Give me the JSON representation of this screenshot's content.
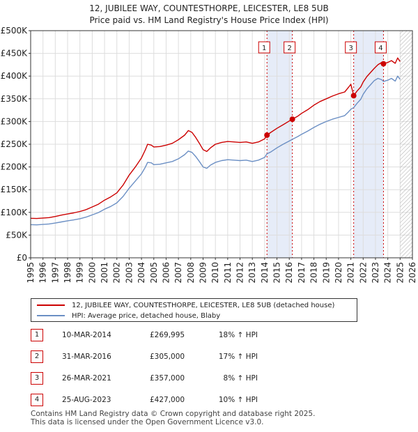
{
  "title_line1": "12, JUBILEE WAY, COUNTESTHORPE, LEICESTER, LE8 5UB",
  "title_line2": "Price paid vs. HM Land Registry's House Price Index (HPI)",
  "colors": {
    "price_line": "#cc0000",
    "hpi_line": "#6b8fc4",
    "marker_fill": "#cc0000",
    "shade": "#e6ecf8",
    "grid": "#dddddd",
    "box_border": "#cc0000",
    "hatch": "#aaaaaa"
  },
  "chart_data": {
    "type": "line",
    "xlim": [
      1995,
      2026
    ],
    "ylim": [
      0,
      500000
    ],
    "x_ticks": [
      "1995",
      "1996",
      "1997",
      "1998",
      "1999",
      "2000",
      "2001",
      "2002",
      "2003",
      "2004",
      "2005",
      "2006",
      "2007",
      "2008",
      "2009",
      "2010",
      "2011",
      "2012",
      "2013",
      "2014",
      "2015",
      "2016",
      "2017",
      "2018",
      "2019",
      "2020",
      "2021",
      "2022",
      "2023",
      "2024",
      "2025",
      "2026"
    ],
    "y_ticks": [
      {
        "value": 0,
        "label": "£0"
      },
      {
        "value": 50000,
        "label": "£50K"
      },
      {
        "value": 100000,
        "label": "£100K"
      },
      {
        "value": 150000,
        "label": "£150K"
      },
      {
        "value": 200000,
        "label": "£200K"
      },
      {
        "value": 250000,
        "label": "£250K"
      },
      {
        "value": 300000,
        "label": "£300K"
      },
      {
        "value": 350000,
        "label": "£350K"
      },
      {
        "value": 400000,
        "label": "£400K"
      },
      {
        "value": 450000,
        "label": "£450K"
      },
      {
        "value": 500000,
        "label": "£500K"
      }
    ],
    "hatch_from": 2025,
    "shaded_periods": [
      [
        2014.19,
        2016.25
      ],
      [
        2021.23,
        2023.65
      ]
    ],
    "series": [
      {
        "name": "12, JUBILEE WAY, COUNTESTHORPE, LEICESTER, LE8 5UB (detached house)",
        "color": "#cc0000",
        "points": [
          [
            1995.0,
            87000
          ],
          [
            1995.5,
            86500
          ],
          [
            1996.0,
            87500
          ],
          [
            1996.5,
            88500
          ],
          [
            1997.0,
            91000
          ],
          [
            1997.5,
            94000
          ],
          [
            1998.0,
            96500
          ],
          [
            1998.5,
            99000
          ],
          [
            1999.0,
            102000
          ],
          [
            1999.5,
            106000
          ],
          [
            2000.0,
            112000
          ],
          [
            2000.5,
            118000
          ],
          [
            2001.0,
            127000
          ],
          [
            2001.5,
            134000
          ],
          [
            2002.0,
            143000
          ],
          [
            2002.5,
            160000
          ],
          [
            2003.0,
            182000
          ],
          [
            2003.5,
            200000
          ],
          [
            2004.0,
            220000
          ],
          [
            2004.3,
            237000
          ],
          [
            2004.5,
            250000
          ],
          [
            2004.8,
            248000
          ],
          [
            2005.0,
            244000
          ],
          [
            2005.5,
            245000
          ],
          [
            2006.0,
            248000
          ],
          [
            2006.5,
            252000
          ],
          [
            2007.0,
            260000
          ],
          [
            2007.5,
            270000
          ],
          [
            2007.8,
            280000
          ],
          [
            2008.1,
            276000
          ],
          [
            2008.4,
            265000
          ],
          [
            2008.7,
            252000
          ],
          [
            2009.0,
            238000
          ],
          [
            2009.3,
            234000
          ],
          [
            2009.6,
            242000
          ],
          [
            2010.0,
            250000
          ],
          [
            2010.5,
            254000
          ],
          [
            2011.0,
            256000
          ],
          [
            2011.5,
            255000
          ],
          [
            2012.0,
            254000
          ],
          [
            2012.5,
            255000
          ],
          [
            2013.0,
            252000
          ],
          [
            2013.5,
            255000
          ],
          [
            2014.0,
            262000
          ],
          [
            2014.19,
            269995
          ],
          [
            2014.5,
            276000
          ],
          [
            2015.0,
            285000
          ],
          [
            2015.5,
            293000
          ],
          [
            2016.0,
            301000
          ],
          [
            2016.25,
            305000
          ],
          [
            2016.7,
            312000
          ],
          [
            2017.0,
            318000
          ],
          [
            2017.5,
            326000
          ],
          [
            2018.0,
            336000
          ],
          [
            2018.5,
            344000
          ],
          [
            2019.0,
            350000
          ],
          [
            2019.5,
            356000
          ],
          [
            2020.0,
            361000
          ],
          [
            2020.5,
            365000
          ],
          [
            2020.8,
            375000
          ],
          [
            2021.0,
            382000
          ],
          [
            2021.23,
            357000
          ],
          [
            2021.5,
            367000
          ],
          [
            2021.8,
            376000
          ],
          [
            2022.0,
            387000
          ],
          [
            2022.3,
            399000
          ],
          [
            2022.6,
            408000
          ],
          [
            2022.9,
            417000
          ],
          [
            2023.2,
            425000
          ],
          [
            2023.5,
            430000
          ],
          [
            2023.65,
            427000
          ],
          [
            2024.0,
            430000
          ],
          [
            2024.3,
            434000
          ],
          [
            2024.6,
            428000
          ],
          [
            2024.8,
            440000
          ],
          [
            2025.0,
            432000
          ]
        ]
      },
      {
        "name": "HPI: Average price, detached house, Blaby",
        "color": "#6b8fc4",
        "points": [
          [
            1995.0,
            73000
          ],
          [
            1995.5,
            72500
          ],
          [
            1996.0,
            73500
          ],
          [
            1996.5,
            74500
          ],
          [
            1997.0,
            76500
          ],
          [
            1997.5,
            79000
          ],
          [
            1998.0,
            81500
          ],
          [
            1998.5,
            83500
          ],
          [
            1999.0,
            86000
          ],
          [
            1999.5,
            89500
          ],
          [
            2000.0,
            94500
          ],
          [
            2000.5,
            99500
          ],
          [
            2001.0,
            107000
          ],
          [
            2001.5,
            113000
          ],
          [
            2002.0,
            121000
          ],
          [
            2002.5,
            135000
          ],
          [
            2003.0,
            153000
          ],
          [
            2003.5,
            169000
          ],
          [
            2004.0,
            185000
          ],
          [
            2004.3,
            199000
          ],
          [
            2004.5,
            210000
          ],
          [
            2004.8,
            209000
          ],
          [
            2005.0,
            205000
          ],
          [
            2005.5,
            206000
          ],
          [
            2006.0,
            209000
          ],
          [
            2006.5,
            212000
          ],
          [
            2007.0,
            218000
          ],
          [
            2007.5,
            227000
          ],
          [
            2007.8,
            235000
          ],
          [
            2008.1,
            232000
          ],
          [
            2008.4,
            223000
          ],
          [
            2008.7,
            212000
          ],
          [
            2009.0,
            200000
          ],
          [
            2009.3,
            197000
          ],
          [
            2009.6,
            204000
          ],
          [
            2010.0,
            210000
          ],
          [
            2010.5,
            214000
          ],
          [
            2011.0,
            216000
          ],
          [
            2011.5,
            215000
          ],
          [
            2012.0,
            214000
          ],
          [
            2012.5,
            215000
          ],
          [
            2013.0,
            212000
          ],
          [
            2013.5,
            215000
          ],
          [
            2014.0,
            221000
          ],
          [
            2014.19,
            228800
          ],
          [
            2014.5,
            233000
          ],
          [
            2015.0,
            242000
          ],
          [
            2015.5,
            250000
          ],
          [
            2016.0,
            257000
          ],
          [
            2016.25,
            260700
          ],
          [
            2016.7,
            267000
          ],
          [
            2017.0,
            272000
          ],
          [
            2017.5,
            279000
          ],
          [
            2018.0,
            287000
          ],
          [
            2018.5,
            294000
          ],
          [
            2019.0,
            300000
          ],
          [
            2019.5,
            305000
          ],
          [
            2020.0,
            309000
          ],
          [
            2020.5,
            313000
          ],
          [
            2020.8,
            321000
          ],
          [
            2021.0,
            327000
          ],
          [
            2021.23,
            330600
          ],
          [
            2021.5,
            340000
          ],
          [
            2021.8,
            349000
          ],
          [
            2022.0,
            360000
          ],
          [
            2022.3,
            372000
          ],
          [
            2022.6,
            381000
          ],
          [
            2022.9,
            390000
          ],
          [
            2023.2,
            395000
          ],
          [
            2023.5,
            392000
          ],
          [
            2023.65,
            388200
          ],
          [
            2024.0,
            391000
          ],
          [
            2024.3,
            395000
          ],
          [
            2024.6,
            389000
          ],
          [
            2024.8,
            400000
          ],
          [
            2025.0,
            393000
          ]
        ]
      }
    ],
    "sales": [
      {
        "id": "1",
        "x": 2014.19,
        "value": 269995
      },
      {
        "id": "2",
        "x": 2016.25,
        "value": 305000
      },
      {
        "id": "3",
        "x": 2021.23,
        "value": 357000
      },
      {
        "id": "4",
        "x": 2023.65,
        "value": 427000
      }
    ]
  },
  "legend": {
    "price_label": "12, JUBILEE WAY, COUNTESTHORPE, LEICESTER, LE8 5UB (detached house)",
    "hpi_label": "HPI: Average price, detached house, Blaby"
  },
  "transactions": [
    {
      "num": "1",
      "date": "10-MAR-2014",
      "price": "£269,995",
      "hpi": "18% ↑ HPI"
    },
    {
      "num": "2",
      "date": "31-MAR-2016",
      "price": "£305,000",
      "hpi": "17% ↑ HPI"
    },
    {
      "num": "3",
      "date": "26-MAR-2021",
      "price": "£357,000",
      "hpi": "8% ↑ HPI"
    },
    {
      "num": "4",
      "date": "25-AUG-2023",
      "price": "£427,000",
      "hpi": "10% ↑ HPI"
    }
  ],
  "footer_line1": "Contains HM Land Registry data © Crown copyright and database right 2025.",
  "footer_line2": "This data is licensed under the Open Government Licence v3.0."
}
